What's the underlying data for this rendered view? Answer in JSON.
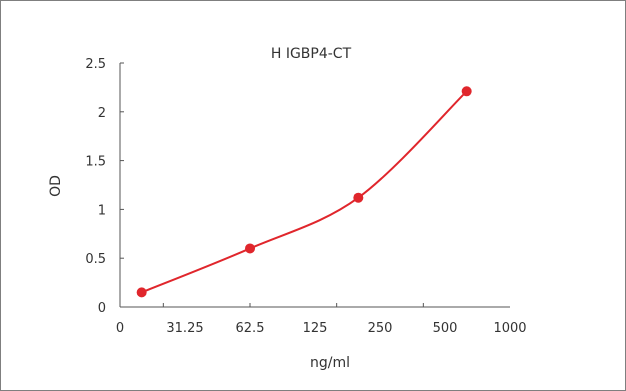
{
  "chart_data": {
    "type": "line",
    "title": "H IGBP4-CT",
    "xlabel": "ng/ml",
    "ylabel": "OD",
    "x_ticks": [
      "0",
      "31.25",
      "62.5",
      "125",
      "250",
      "500",
      "1000"
    ],
    "y_ticks": [
      "0",
      "0.5",
      "1",
      "1.5",
      "2",
      "2.5"
    ],
    "ylim": [
      0,
      2.5
    ],
    "grid": false,
    "series": [
      {
        "color": "#e0262c",
        "points": [
          {
            "x_index": 0.5,
            "y": 0.15
          },
          {
            "x_index": 3.0,
            "y": 0.6
          },
          {
            "x_index": 5.5,
            "y": 1.12
          },
          {
            "x_index": 8.0,
            "y": 2.21
          }
        ]
      }
    ]
  }
}
